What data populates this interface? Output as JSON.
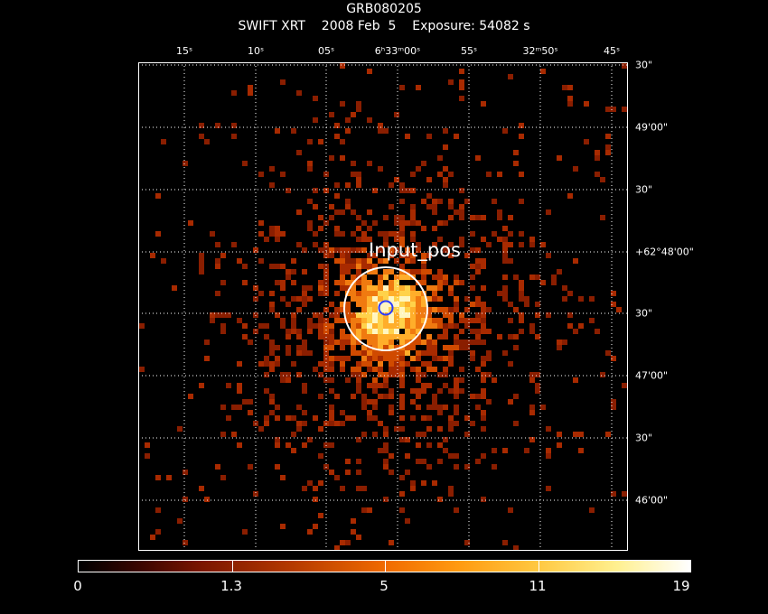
{
  "header": {
    "title": "GRB080205",
    "subtitle": "SWIFT XRT    2008 Feb  5    Exposure: 54082 s"
  },
  "ra_ticks": [
    {
      "label": "15ˢ"
    },
    {
      "label": "10ˢ"
    },
    {
      "label": "05ˢ"
    },
    {
      "label": "6ʰ33ᵐ00ˢ"
    },
    {
      "label": "55ˢ"
    },
    {
      "label": "32ᵐ50ˢ"
    },
    {
      "label": "45ˢ"
    }
  ],
  "dec_ticks": [
    {
      "label": "30\""
    },
    {
      "label": "49'00\""
    },
    {
      "label": "30\""
    },
    {
      "label": "+62°48'00\""
    },
    {
      "label": "30\""
    },
    {
      "label": "47'00\""
    },
    {
      "label": "30\""
    },
    {
      "label": "46'00\""
    }
  ],
  "source": {
    "label": "Input_pos"
  },
  "colorbar": {
    "labels": [
      "0",
      "1.3",
      "5",
      "11",
      "19"
    ]
  },
  "colors": {
    "background": "#000000",
    "grid": "#ffffff",
    "circle": "#ffffff",
    "inner_circle": "#2a3cff"
  }
}
